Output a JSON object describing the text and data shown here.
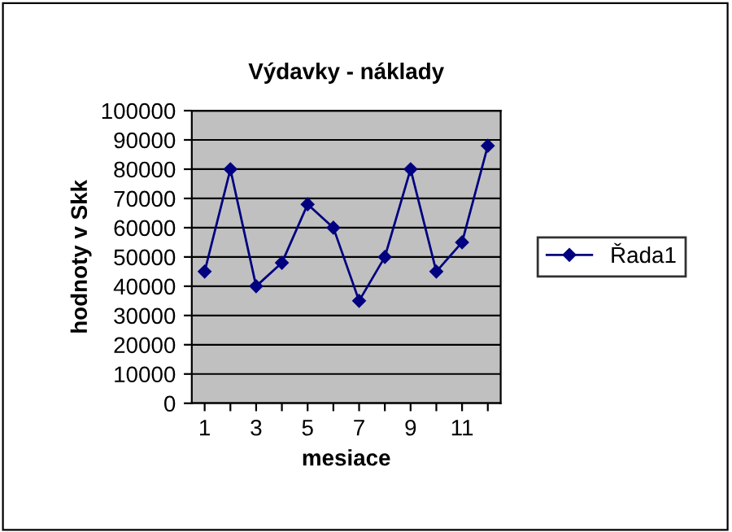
{
  "chart_data": {
    "type": "line",
    "title": "Výdavky - náklady",
    "xlabel": "mesiace",
    "ylabel": "hodnoty v Skk",
    "categories": [
      "1",
      null,
      "3",
      null,
      "5",
      null,
      "7",
      null,
      "9",
      null,
      "11",
      null
    ],
    "series": [
      {
        "name": "Řada1",
        "color": "#000080",
        "values": [
          45000,
          80000,
          40000,
          48000,
          68000,
          60000,
          35000,
          50000,
          80000,
          45000,
          55000,
          88000
        ]
      }
    ],
    "ylim": [
      0,
      100000
    ],
    "yticks": [
      0,
      10000,
      20000,
      30000,
      40000,
      50000,
      60000,
      70000,
      80000,
      90000,
      100000
    ],
    "grid": "y",
    "legend": "right",
    "marker": "diamond",
    "line_style": "solid"
  }
}
